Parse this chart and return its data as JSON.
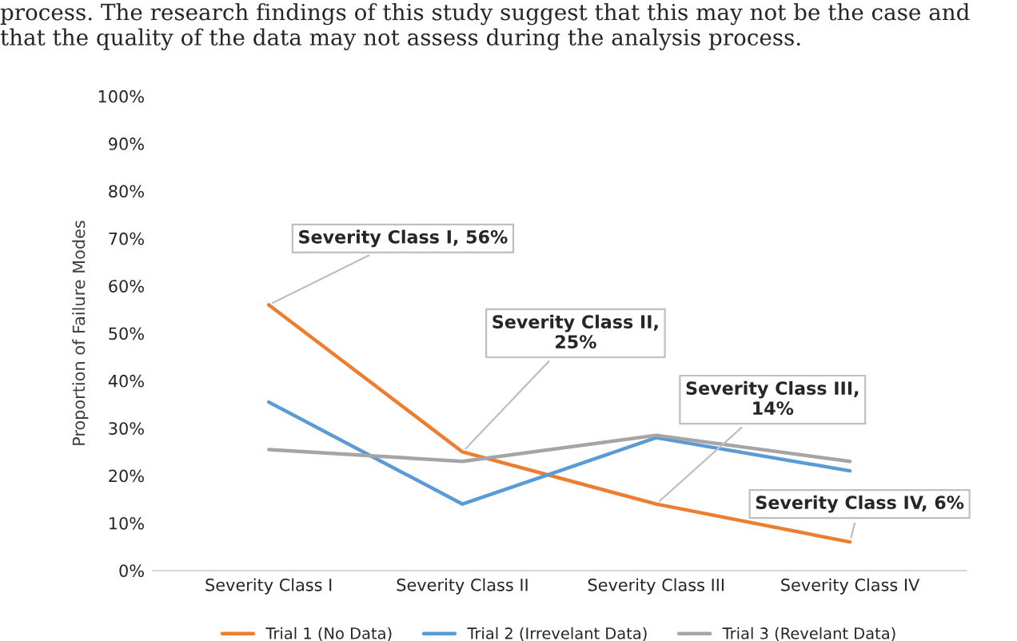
{
  "chart_data": {
    "type": "line",
    "ylabel": "Proportion of Failure Modes",
    "categories": [
      "Severity Class I",
      "Severity Class II",
      "Severity Class III",
      "Severity Class IV"
    ],
    "series": [
      {
        "name": "Trial 1 (No Data)",
        "color": "#ed7d31",
        "values": [
          56,
          25,
          14,
          6
        ]
      },
      {
        "name": "Trial 2 (Irrevelant Data)",
        "color": "#5b9bd5",
        "values": [
          35.5,
          14,
          28,
          21
        ]
      },
      {
        "name": "Trial 3 (Revelant Data)",
        "color": "#a5a5a5",
        "values": [
          25.5,
          23,
          28.5,
          23
        ]
      }
    ],
    "ylim": [
      0,
      100
    ],
    "yticks": [
      {
        "value": 0,
        "label": "0%"
      },
      {
        "value": 10,
        "label": "10%"
      },
      {
        "value": 20,
        "label": "20%"
      },
      {
        "value": 30,
        "label": "30%"
      },
      {
        "value": 40,
        "label": "40%"
      },
      {
        "value": 50,
        "label": "50%"
      },
      {
        "value": 60,
        "label": "60%"
      },
      {
        "value": 70,
        "label": "70%"
      },
      {
        "value": 80,
        "label": "80%"
      },
      {
        "value": 90,
        "label": "90%"
      },
      {
        "value": 100,
        "label": "100%"
      }
    ],
    "grid": false,
    "legend": "bottom",
    "marker": "none",
    "line_style": "solid",
    "annotations": [
      "process. The research findings of this study suggest that this may not be the case and that the quality of the data may not assess during the analysis process.",
      {
        "text": "Severity Class I, 56%",
        "x": "Severity Class I",
        "y": 56
      },
      {
        "text": "Severity Class II,\n25%",
        "x": "Severity Class II",
        "y": 25
      },
      {
        "text": "Severity Class III,\n14%",
        "x": "Severity Class III",
        "y": 14
      },
      {
        "text": "Severity Class IV, 6%",
        "x": "Severity Class IV",
        "y": 6
      }
    ]
  }
}
